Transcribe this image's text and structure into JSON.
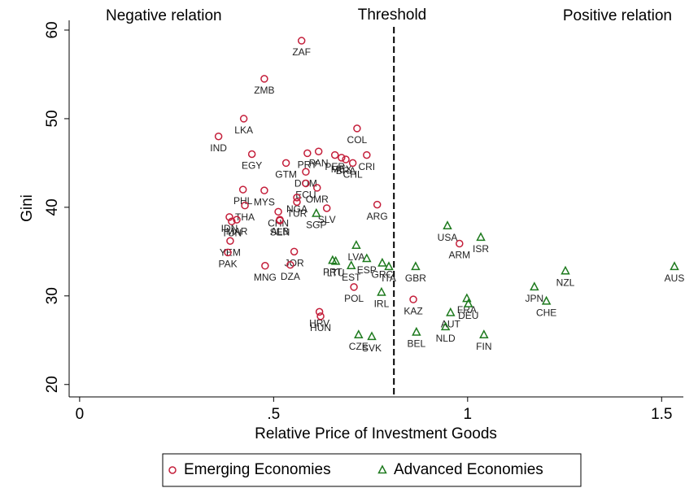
{
  "chart_data": {
    "type": "scatter",
    "x_label": "Relative Price of Investment Goods",
    "y_label": "Gini",
    "xlim": [
      -0.027,
      1.556
    ],
    "ylim": [
      18.6,
      61.1
    ],
    "xticks": [
      0,
      {
        "value": 0.5,
        "label": ".5"
      },
      1,
      1.5
    ],
    "yticks": [
      20,
      30,
      40,
      50,
      60
    ],
    "grid": false,
    "legend": "bottom",
    "threshold": 0.81,
    "annotations": [
      "Negative relation",
      "Threshold",
      "Positive relation"
    ],
    "series": [
      {
        "name": "Emerging Economies",
        "color": "#c41e3a",
        "marker": "circle",
        "labels": [
          "ZAF",
          "ZMB",
          "LKA",
          "IND",
          "EGY",
          "COL",
          "GTM",
          "PRY",
          "PAN",
          "PER",
          "MEX",
          "BRA",
          "CRI",
          "CHL",
          "DOM",
          "ECU",
          "OMR",
          "NGA",
          "PHL",
          "MYS",
          "THA",
          "CHN",
          "TUR",
          "SLV",
          "ARG",
          "SEN",
          "ALB",
          "IDN",
          "MAR",
          "TUN",
          "YEM",
          "PAK",
          "JOR",
          "DZA",
          "MNG",
          "POL",
          "HRV",
          "HUN",
          "KAZ",
          "ARM"
        ],
        "x": [
          0.572,
          0.476,
          0.423,
          0.358,
          0.444,
          0.715,
          0.532,
          0.587,
          0.616,
          0.658,
          0.675,
          0.686,
          0.74,
          0.704,
          0.583,
          0.583,
          0.612,
          0.56,
          0.421,
          0.476,
          0.426,
          0.512,
          0.56,
          0.637,
          0.767,
          0.516,
          0.516,
          0.386,
          0.405,
          0.392,
          0.388,
          0.382,
          0.553,
          0.543,
          0.478,
          0.707,
          0.618,
          0.621,
          0.86,
          0.979
        ],
        "values": [
          58.8,
          54.5,
          50.0,
          48.0,
          46.0,
          48.9,
          45.0,
          46.1,
          46.3,
          45.9,
          45.6,
          45.4,
          45.9,
          45.0,
          44.0,
          42.7,
          42.2,
          41.1,
          42.0,
          41.9,
          40.2,
          39.5,
          40.6,
          39.9,
          40.3,
          38.5,
          38.6,
          38.9,
          38.6,
          38.4,
          36.2,
          34.9,
          35.0,
          33.5,
          33.4,
          31.0,
          28.2,
          27.7,
          29.6,
          35.9
        ]
      },
      {
        "name": "Advanced Economies",
        "color": "#1e7a1e",
        "marker": "triangle",
        "labels": [
          "SGP",
          "LVA",
          "ESP",
          "PRT",
          "LTU",
          "EST",
          "GRC",
          "ITA",
          "IRL",
          "CZE",
          "SVK",
          "GBR",
          "USA",
          "ISR",
          "FRA",
          "DEU",
          "AUT",
          "NLD",
          "BEL",
          "FIN",
          "JPN",
          "CHE",
          "NZL",
          "AUS"
        ],
        "x": [
          0.61,
          0.713,
          0.74,
          0.652,
          0.66,
          0.7,
          0.78,
          0.797,
          0.778,
          0.719,
          0.753,
          0.866,
          0.948,
          1.034,
          0.998,
          1.002,
          0.956,
          0.943,
          0.868,
          1.042,
          1.172,
          1.203,
          1.252,
          1.533
        ],
        "values": [
          39.3,
          35.7,
          34.2,
          34.0,
          33.9,
          33.4,
          33.7,
          33.3,
          30.4,
          25.6,
          25.4,
          33.3,
          37.9,
          36.6,
          29.7,
          29.1,
          28.1,
          26.5,
          25.9,
          25.6,
          31.0,
          29.4,
          32.8,
          33.3
        ]
      }
    ]
  }
}
